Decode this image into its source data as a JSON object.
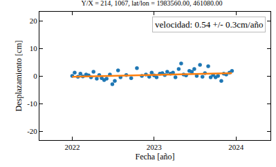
{
  "chart_data": {
    "type": "scatter",
    "title": "Y/X = 214, 1067, lat/lon = 1983560.00, 461080.00",
    "x_label": "Fecha [año]",
    "y_label": "Desplazamiento [cm]",
    "annotation": "velocidad: 0.54 +/- 0.3cm/año",
    "xlim": [
      2021.6,
      2024.42
    ],
    "xticks": [
      2022,
      2023,
      2024
    ],
    "ylim": [
      -23.25,
      23.25
    ],
    "yticks": [
      -20,
      -10,
      0,
      10,
      20
    ],
    "grid": false,
    "series": [
      {
        "type": "scatter",
        "marker": "circle",
        "color": "#1f77b4",
        "x": [
          2022.0,
          2022.03,
          2022.07,
          2022.1,
          2022.13,
          2022.17,
          2022.2,
          2022.23,
          2022.26,
          2022.3,
          2022.33,
          2022.36,
          2022.39,
          2022.42,
          2022.46,
          2022.49,
          2022.52,
          2022.56,
          2022.59,
          2022.66,
          2022.72,
          2022.79,
          2022.85,
          2022.9,
          2022.94,
          2022.97,
          2023.0,
          2023.03,
          2023.07,
          2023.1,
          2023.13,
          2023.16,
          2023.2,
          2023.23,
          2023.26,
          2023.3,
          2023.33,
          2023.36,
          2023.39,
          2023.43,
          2023.46,
          2023.49,
          2023.52,
          2023.56,
          2023.59,
          2023.62,
          2023.66,
          2023.69,
          2023.72,
          2023.75,
          2023.78,
          2023.82,
          2023.85,
          2023.88,
          2023.92,
          2023.95
        ],
        "values": [
          0.0,
          1.2,
          -0.3,
          0.8,
          -0.2,
          0.5,
          0.2,
          -0.5,
          1.5,
          -1.0,
          0.3,
          -0.8,
          -1.5,
          -1.0,
          0.5,
          -3.0,
          -1.8,
          2.0,
          -0.5,
          0.3,
          -0.8,
          2.8,
          0.0,
          0.5,
          -0.3,
          1.2,
          0.2,
          -0.5,
          0.8,
          1.0,
          0.3,
          1.5,
          0.8,
          1.2,
          -0.5,
          2.5,
          4.5,
          0.5,
          0.2,
          1.8,
          1.5,
          2.5,
          0.0,
          4.0,
          -0.3,
          1.0,
          3.5,
          -0.5,
          0.3,
          -0.5,
          0.0,
          -1.8,
          0.8,
          0.5,
          1.2,
          1.8
        ]
      },
      {
        "type": "line",
        "line_style": "solid",
        "color": "#ff7f0e",
        "x": [
          2022.0,
          2023.95
        ],
        "values": [
          -0.3,
          1.0
        ]
      }
    ]
  }
}
